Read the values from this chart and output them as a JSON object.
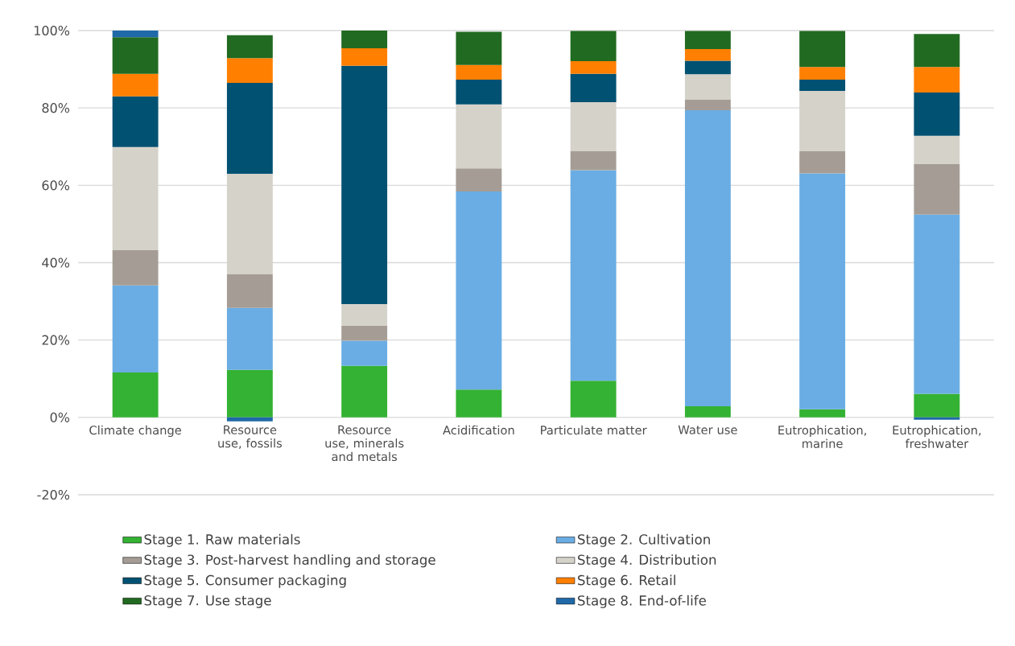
{
  "chart_data": {
    "type": "bar",
    "stacked": true,
    "categories": [
      "Climate change",
      "Resource use, fossils",
      "Resource use, minerals and metals",
      "Acidification",
      "Particulate matter",
      "Water use",
      "Eutrophication, marine",
      "Eutrophication, freshwater"
    ],
    "series": [
      {
        "name": "Stage 1. Raw materials",
        "color": "#34b233",
        "values": [
          11.6,
          12.3,
          13.3,
          7.2,
          9.5,
          2.9,
          2.1,
          6.1
        ]
      },
      {
        "name": "Stage 2. Cultivation",
        "color": "#6aade4",
        "values": [
          22.5,
          16.0,
          6.5,
          51.2,
          54.4,
          76.5,
          61.0,
          46.3
        ]
      },
      {
        "name": "Stage 3. Post-harvest handling and storage",
        "color": "#a59d95",
        "values": [
          9.1,
          8.7,
          3.9,
          6.0,
          4.9,
          2.7,
          5.7,
          13.1
        ]
      },
      {
        "name": "Stage 4. Distribution",
        "color": "#d5d2ca",
        "values": [
          26.7,
          26.0,
          5.6,
          16.5,
          12.7,
          6.6,
          15.6,
          7.3
        ]
      },
      {
        "name": "Stage 5. Consumer packaging",
        "color": "#005172",
        "values": [
          13.1,
          23.5,
          61.6,
          6.4,
          7.3,
          3.5,
          2.9,
          11.2
        ]
      },
      {
        "name": "Stage 6. Retail",
        "color": "#ff7f00",
        "values": [
          5.8,
          6.4,
          4.5,
          3.8,
          3.3,
          3.0,
          3.3,
          6.6
        ]
      },
      {
        "name": "Stage 7. Use stage",
        "color": "#216a21",
        "values": [
          9.5,
          5.9,
          4.6,
          8.6,
          7.8,
          4.7,
          9.3,
          8.5
        ]
      },
      {
        "name": "Stage 8. End-of-life",
        "color": "#1f69a9",
        "values": [
          1.7,
          -1.0,
          0,
          0,
          0,
          0,
          null,
          -0.6
        ]
      }
    ],
    "ylim": [
      -20,
      100
    ],
    "yticks": [
      {
        "value": -20,
        "label": "-20%"
      },
      {
        "value": 0,
        "label": "0%"
      },
      {
        "value": 20,
        "label": "20%"
      },
      {
        "value": 40,
        "label": "40%"
      },
      {
        "value": 60,
        "label": "60%"
      },
      {
        "value": 80,
        "label": "80%"
      },
      {
        "value": 100,
        "label": "100%"
      }
    ],
    "grid": "y",
    "legend": "bottom"
  }
}
